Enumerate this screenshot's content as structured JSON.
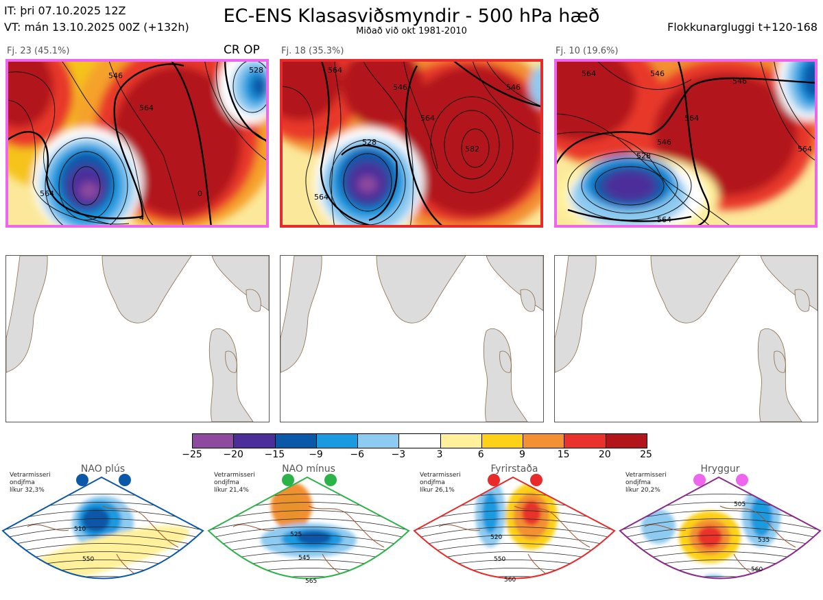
{
  "header": {
    "it_line": "IT: þri 07.10.2025 12Z",
    "vt_line": "VT: mán 13.10.2025 00Z  (+132h)",
    "title": "EC-ENS Klasasviðsmyndir - 500 hPa hæð",
    "subtitle": "Miðað við okt 1981-2010",
    "window": "Flokkunargluggi t+120-168"
  },
  "panels": [
    {
      "label": "Fj. 23 (45.1%)",
      "tag": "CR OP",
      "frame_color": "#ee66ee"
    },
    {
      "label": "Fj. 18 (35.3%)",
      "tag": "",
      "frame_color": "#e82a2a"
    },
    {
      "label": "Fj. 10 (19.6%)",
      "tag": "",
      "frame_color": "#ee66ee"
    }
  ],
  "contour_labels": [
    "546",
    "564",
    "528",
    "582",
    "0",
    "4"
  ],
  "colorbar": {
    "colors": [
      "#8e4a9e",
      "#4b2e9a",
      "#0b57a8",
      "#1c9ae0",
      "#8ecbf0",
      "#ffffff",
      "#fff19c",
      "#fdd117",
      "#f29033",
      "#e8322b",
      "#b2161a"
    ],
    "ticks": [
      "−25",
      "−20",
      "−15",
      "−9",
      "−6",
      "−3",
      "3",
      "6",
      "9",
      "15",
      "20",
      "25"
    ]
  },
  "regimes": [
    {
      "name": "NAO plús",
      "line1": "Vetrarmisseri",
      "line2": "ondjfma",
      "line3": "líkur 32,3%",
      "color": "#0b57a8",
      "contours": [
        "510",
        "550"
      ]
    },
    {
      "name": "NAO mínus",
      "line1": "Vetrarmisseri",
      "line2": "ondjfma",
      "line3": "líkur 21,4%",
      "color": "#2bb34a",
      "contours": [
        "525",
        "545",
        "565"
      ]
    },
    {
      "name": "Fyrirstaða",
      "line1": "Vetrarmisseri",
      "line2": "ondjfma",
      "line3": "líkur 26,1%",
      "color": "#e82a2a",
      "contours": [
        "520",
        "550",
        "560"
      ]
    },
    {
      "name": "Hryggur",
      "line1": "Vetrarmisseri",
      "line2": "ondjfma",
      "line3": "líkur 20,2%",
      "color": "#8a2a8a",
      "contours": [
        "505",
        "535",
        "560"
      ]
    }
  ]
}
